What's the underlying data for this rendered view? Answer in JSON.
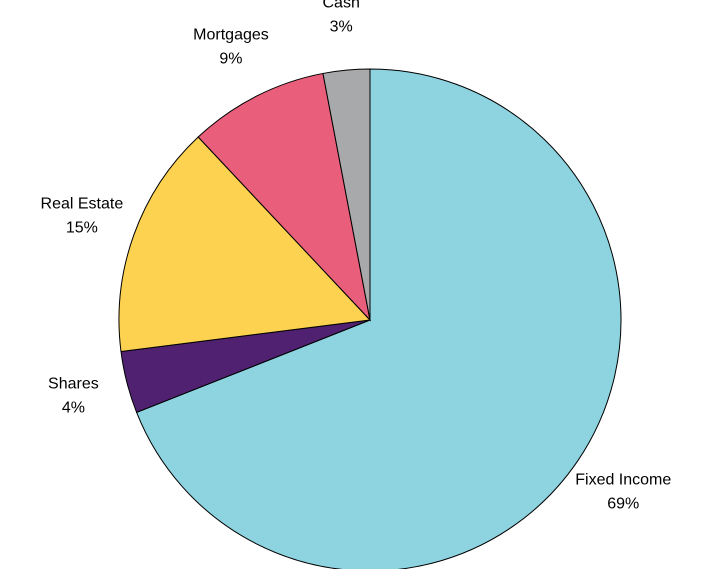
{
  "chart_data": {
    "type": "pie",
    "categories": [
      "Fixed Income",
      "Shares",
      "Real Estate",
      "Mortgages",
      "Cash"
    ],
    "values": [
      69,
      4,
      15,
      9,
      3
    ],
    "value_labels": [
      "69%",
      "4%",
      "15%",
      "9%",
      "3%"
    ],
    "colors": [
      "#8dd3e0",
      "#4f2170",
      "#fdd250",
      "#e95e7a",
      "#a8a9ab"
    ]
  }
}
